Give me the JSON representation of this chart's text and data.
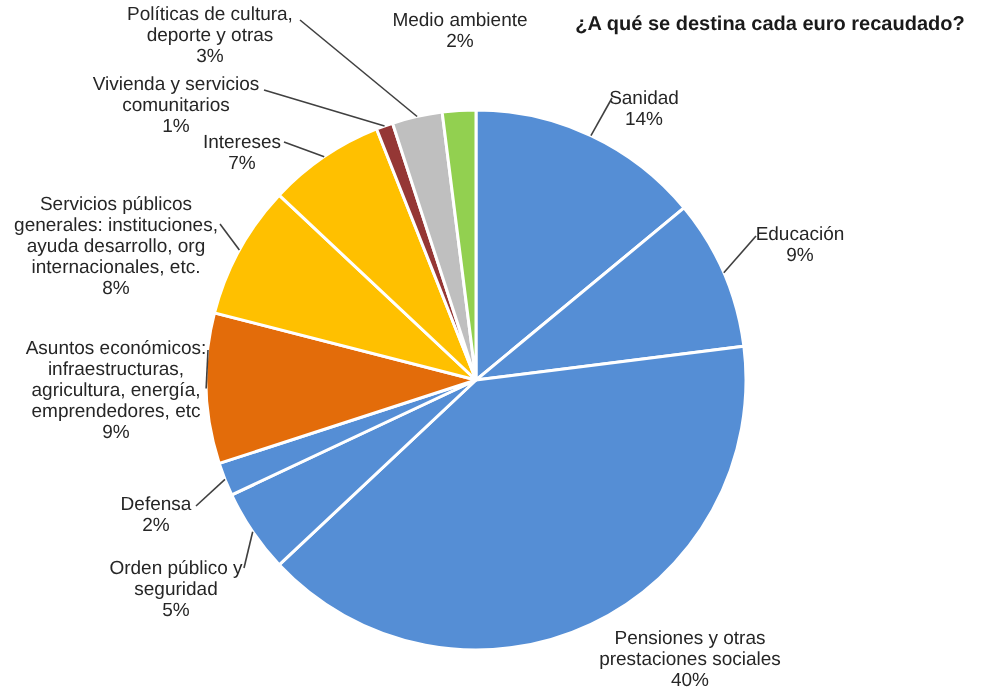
{
  "chart_data": {
    "type": "pie",
    "title": "¿A qué se destina cada euro recaudado?",
    "categories": [
      "Sanidad",
      "Educación",
      "Pensiones y otras prestaciones sociales",
      "Orden público y seguridad",
      "Defensa",
      "Asuntos económicos: infraestructuras, agricultura, energía, emprendedores, etc",
      "Servicios públicos generales: instituciones, ayuda desarrollo, org internacionales, etc.",
      "Intereses",
      "Vivienda y servicios comunitarios",
      "Políticas de cultura, deporte y otras",
      "Medio ambiente"
    ],
    "values": [
      14,
      9,
      40,
      5,
      2,
      9,
      8,
      7,
      1,
      3,
      2
    ],
    "value_labels": [
      "14%",
      "9%",
      "40%",
      "5%",
      "2%",
      "9%",
      "8%",
      "7%",
      "1%",
      "3%",
      "2%"
    ],
    "colors": [
      "#558ed5",
      "#558ed5",
      "#558ed5",
      "#558ed5",
      "#558ed5",
      "#e36c0a",
      "#ffc000",
      "#ffc000",
      "#953735",
      "#bfbfbf",
      "#92d050"
    ]
  }
}
